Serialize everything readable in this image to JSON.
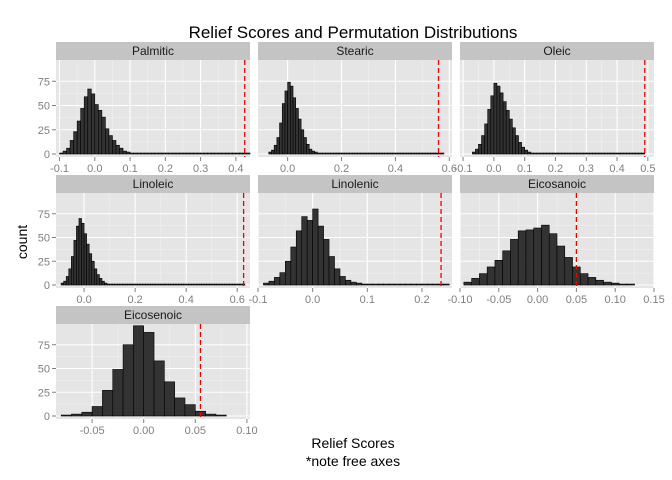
{
  "chart_data": {
    "type": "bar",
    "title": "Relief Scores and Permutation Distributions",
    "xlabel": "Relief Scores",
    "xlabel_note": "*note free axes",
    "ylabel": "count",
    "colors": {
      "bar_fill": "#333333",
      "bar_stroke": "#000000",
      "ref_line": "#ee0000",
      "panel_bg": "#e5e5e5",
      "strip_bg": "#c4c4c4",
      "grid": "#ffffff",
      "axis_text": "#7f7f7f"
    },
    "grid": true,
    "panels": [
      {
        "name": "Palmitic",
        "xlim": [
          -0.11,
          0.44
        ],
        "ylim": [
          0,
          100
        ],
        "xticks": [
          -0.1,
          0.0,
          0.1,
          0.2,
          0.3,
          0.4
        ],
        "xtick_labels": [
          "-0.1",
          "0.0",
          "0.1",
          "0.2",
          "0.3",
          "0.4"
        ],
        "yticks": [
          0,
          25,
          50,
          75
        ],
        "ytick_labels": [
          "0",
          "25",
          "50",
          "75"
        ],
        "bin_start": -0.1,
        "bin_width": 0.01,
        "counts": [
          1,
          3,
          6,
          14,
          23,
          34,
          47,
          59,
          67,
          62,
          51,
          45,
          38,
          26,
          19,
          14,
          9,
          6,
          3,
          2,
          1,
          1,
          1,
          1,
          1,
          1,
          1,
          1,
          1,
          1,
          1,
          1,
          1,
          1,
          1,
          1,
          1,
          1,
          1,
          1,
          1,
          1,
          1,
          1,
          1,
          1,
          1,
          1,
          1,
          1,
          1,
          1,
          1,
          1
        ],
        "relief_score": 0.425
      },
      {
        "name": "Stearic",
        "xlim": [
          -0.11,
          0.61
        ],
        "ylim": [
          0,
          100
        ],
        "xticks": [
          0.0,
          0.2,
          0.4,
          0.6
        ],
        "xtick_labels": [
          "0.0",
          "0.2",
          "0.4",
          "0.6"
        ],
        "yticks": [
          0,
          25,
          50,
          75
        ],
        "ytick_labels": [
          "0",
          "25",
          "50",
          "75"
        ],
        "bin_start": -0.07,
        "bin_width": 0.01,
        "counts": [
          2,
          4,
          9,
          17,
          32,
          52,
          65,
          74,
          70,
          58,
          47,
          36,
          25,
          17,
          10,
          5,
          3,
          2,
          1,
          1,
          1,
          1,
          1,
          1,
          1,
          1,
          1,
          1,
          1,
          1,
          1,
          1,
          1,
          1,
          1,
          1,
          1,
          1,
          1,
          1,
          1,
          1,
          1,
          1,
          1,
          1,
          1,
          1,
          1,
          1,
          1,
          1,
          1,
          1,
          1,
          1,
          1,
          1,
          1,
          1,
          1,
          1,
          1,
          1,
          1
        ],
        "relief_score": 0.56
      },
      {
        "name": "Oleic",
        "xlim": [
          -0.11,
          0.52
        ],
        "ylim": [
          0,
          100
        ],
        "xticks": [
          -0.1,
          0.0,
          0.1,
          0.2,
          0.3,
          0.4,
          0.5
        ],
        "xtick_labels": [
          "-0.1",
          "0.0",
          "0.1",
          "0.2",
          "0.3",
          "0.4",
          "0.5"
        ],
        "yticks": [
          0,
          25,
          50,
          75
        ],
        "ytick_labels": [
          "0",
          "25",
          "50",
          "75"
        ],
        "bin_start": -0.07,
        "bin_width": 0.01,
        "counts": [
          2,
          5,
          10,
          19,
          31,
          46,
          60,
          73,
          70,
          63,
          54,
          45,
          36,
          27,
          19,
          12,
          7,
          4,
          2,
          1,
          1,
          1,
          1,
          1,
          1,
          1,
          1,
          1,
          1,
          1,
          1,
          1,
          1,
          1,
          1,
          1,
          1,
          1,
          1,
          1,
          1,
          1,
          1,
          1,
          1,
          1,
          1,
          1,
          1,
          1,
          1,
          1,
          1,
          1,
          1,
          1
        ],
        "relief_score": 0.49
      },
      {
        "name": "Linoleic",
        "xlim": [
          -0.11,
          0.65
        ],
        "ylim": [
          0,
          100
        ],
        "xticks": [
          0.0,
          0.2,
          0.4,
          0.6
        ],
        "xtick_labels": [
          "0.0",
          "0.2",
          "0.4",
          "0.6"
        ],
        "yticks": [
          0,
          25,
          50,
          75
        ],
        "ytick_labels": [
          "0",
          "25",
          "50",
          "75"
        ],
        "bin_start": -0.09,
        "bin_width": 0.01,
        "counts": [
          2,
          4,
          9,
          17,
          30,
          47,
          62,
          70,
          65,
          54,
          43,
          33,
          25,
          17,
          11,
          7,
          4,
          2,
          1,
          1,
          1,
          1,
          1,
          1,
          1,
          1,
          1,
          1,
          1,
          1,
          1,
          1,
          1,
          1,
          1,
          1,
          1,
          1,
          1,
          1,
          1,
          1,
          1,
          1,
          1,
          1,
          1,
          1,
          1,
          1,
          1,
          1,
          1,
          1,
          1,
          1,
          1,
          1,
          1,
          1,
          1,
          1,
          1,
          1,
          1,
          1,
          1,
          1,
          1,
          1,
          1,
          1
        ],
        "relief_score": 0.625
      },
      {
        "name": "Linolenic",
        "xlim": [
          -0.1,
          0.255
        ],
        "ylim": [
          0,
          100
        ],
        "xticks": [
          -0.1,
          0.0,
          0.1,
          0.2
        ],
        "xtick_labels": [
          "-0.1",
          "0.0",
          "0.1",
          "0.2"
        ],
        "yticks": [
          0,
          25,
          50,
          75
        ],
        "ytick_labels": [
          "0",
          "25",
          "50",
          "75"
        ],
        "bin_start": -0.09,
        "bin_width": 0.01,
        "counts": [
          2,
          4,
          8,
          13,
          25,
          40,
          57,
          72,
          68,
          80,
          62,
          48,
          30,
          17,
          9,
          5,
          3,
          2,
          1,
          1,
          1,
          1,
          1,
          1,
          1,
          1,
          1,
          1,
          1,
          1,
          1,
          1,
          1,
          1
        ],
        "relief_score": 0.235
      },
      {
        "name": "Eicosanoic",
        "xlim": [
          -0.1,
          0.15
        ],
        "ylim": [
          0,
          100
        ],
        "xticks": [
          -0.1,
          -0.05,
          0.0,
          0.05,
          0.1,
          0.15
        ],
        "xtick_labels": [
          "-0.10",
          "-0.05",
          "0.00",
          "0.05",
          "0.10",
          "0.15"
        ],
        "yticks": [
          0,
          25,
          50,
          75
        ],
        "ytick_labels": [
          "0",
          "25",
          "50",
          "75"
        ],
        "bin_start": -0.095,
        "bin_width": 0.01,
        "counts": [
          3,
          7,
          12,
          19,
          26,
          36,
          48,
          57,
          58,
          60,
          63,
          54,
          41,
          29,
          19,
          12,
          8,
          5,
          3,
          2,
          1,
          1
        ],
        "relief_score": 0.05
      },
      {
        "name": "Eicosenoic",
        "xlim": [
          -0.085,
          0.103
        ],
        "ylim": [
          0,
          100
        ],
        "xticks": [
          -0.05,
          0.0,
          0.05,
          0.1
        ],
        "xtick_labels": [
          "-0.05",
          "0.00",
          "0.05",
          "0.10"
        ],
        "yticks": [
          0,
          25,
          50,
          75
        ],
        "ytick_labels": [
          "0",
          "25",
          "50",
          "75"
        ],
        "bin_start": -0.08,
        "bin_width": 0.01,
        "counts": [
          1,
          2,
          4,
          10,
          27,
          49,
          75,
          95,
          88,
          58,
          36,
          19,
          12,
          5,
          2,
          1
        ],
        "relief_score": 0.055
      }
    ]
  }
}
